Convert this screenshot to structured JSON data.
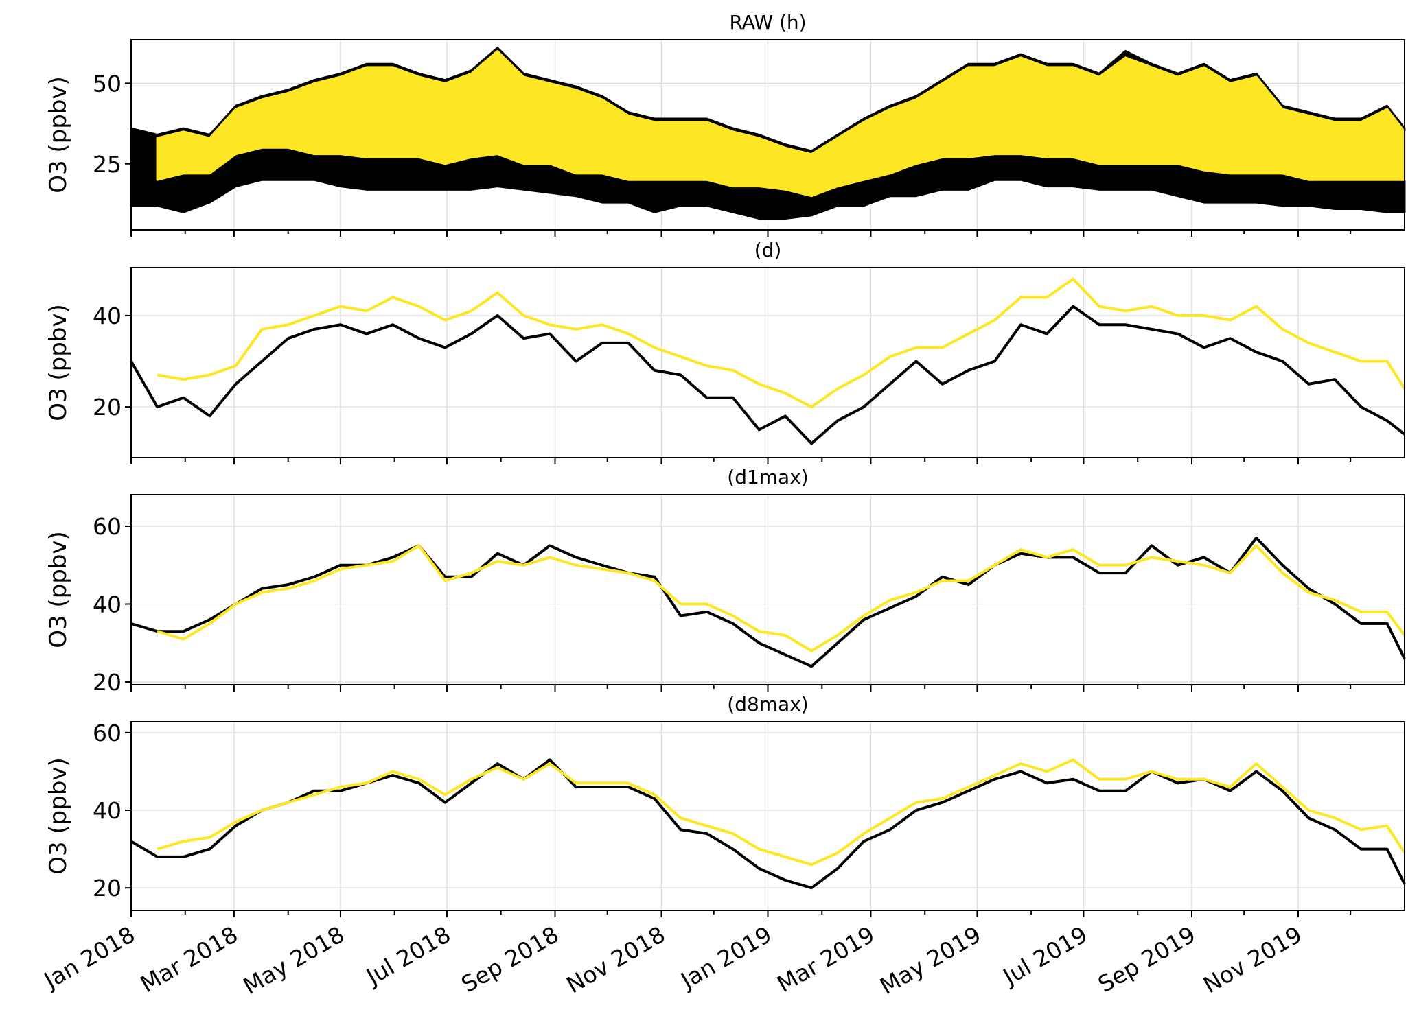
{
  "colors": {
    "observed": "#000000",
    "model": "#fde725",
    "grid": "#dddddd"
  },
  "x_tick_labels": [
    "Jan 2018",
    "Mar 2018",
    "May 2018",
    "Jul 2018",
    "Sep 2018",
    "Nov 2018",
    "Jan 2019",
    "Mar 2019",
    "May 2019",
    "Jul 2019",
    "Sep 2019",
    "Nov 2019"
  ],
  "chart_data": [
    {
      "type": "area",
      "title": "RAW (h)",
      "ylabel": "O3 (ppbv)",
      "yticks": [
        25,
        50
      ],
      "ylim": [
        4.5,
        63.5
      ],
      "xlim": [
        0,
        730
      ],
      "grid": true,
      "x": [
        0,
        15,
        30,
        45,
        60,
        75,
        90,
        105,
        120,
        135,
        150,
        165,
        180,
        195,
        210,
        225,
        240,
        255,
        270,
        285,
        300,
        315,
        330,
        345,
        360,
        375,
        390,
        405,
        420,
        435,
        450,
        465,
        480,
        495,
        510,
        525,
        540,
        555,
        570,
        585,
        600,
        615,
        630,
        645,
        660,
        675,
        690,
        705,
        720,
        730
      ],
      "series": [
        {
          "name": "black",
          "low": [
            12,
            12,
            10,
            13,
            18,
            20,
            20,
            20,
            18,
            17,
            17,
            17,
            17,
            17,
            18,
            17,
            16,
            15,
            13,
            13,
            10,
            12,
            12,
            10,
            8,
            8,
            9,
            12,
            12,
            15,
            15,
            17,
            17,
            20,
            20,
            18,
            18,
            17,
            17,
            17,
            15,
            13,
            13,
            13,
            12,
            12,
            11,
            11,
            10,
            10
          ],
          "high": [
            36,
            34,
            36,
            34,
            43,
            46,
            48,
            51,
            53,
            56,
            56,
            53,
            51,
            54,
            61,
            53,
            51,
            49,
            46,
            41,
            39,
            39,
            39,
            36,
            34,
            31,
            29,
            34,
            39,
            43,
            46,
            51,
            56,
            56,
            59,
            56,
            56,
            53,
            60,
            56,
            53,
            56,
            51,
            53,
            43,
            41,
            39,
            39,
            43,
            36
          ]
        },
        {
          "name": "yellow",
          "low": [
            null,
            20,
            22,
            22,
            28,
            30,
            30,
            28,
            28,
            27,
            27,
            27,
            25,
            27,
            28,
            25,
            25,
            22,
            22,
            20,
            20,
            20,
            20,
            18,
            18,
            17,
            15,
            18,
            20,
            22,
            25,
            27,
            27,
            28,
            28,
            27,
            27,
            25,
            25,
            25,
            25,
            23,
            22,
            22,
            22,
            20,
            20,
            20,
            20,
            20
          ],
          "high": [
            null,
            33,
            35,
            33,
            42,
            45,
            47,
            50,
            52,
            55,
            55,
            52,
            50,
            53,
            60,
            52,
            50,
            48,
            45,
            40,
            38,
            38,
            38,
            35,
            33,
            30,
            28,
            33,
            38,
            42,
            45,
            50,
            55,
            55,
            58,
            55,
            55,
            52,
            58,
            55,
            52,
            55,
            50,
            52,
            42,
            40,
            38,
            38,
            42,
            35
          ]
        }
      ]
    },
    {
      "type": "line",
      "title": "(d)",
      "ylabel": "O3 (ppbv)",
      "yticks": [
        20,
        40
      ],
      "ylim": [
        8.9,
        50.5
      ],
      "xlim": [
        0,
        730
      ],
      "grid": true,
      "x": [
        0,
        15,
        30,
        45,
        60,
        75,
        90,
        105,
        120,
        135,
        150,
        165,
        180,
        195,
        210,
        225,
        240,
        255,
        270,
        285,
        300,
        315,
        330,
        345,
        360,
        375,
        390,
        405,
        420,
        435,
        450,
        465,
        480,
        495,
        510,
        525,
        540,
        555,
        570,
        585,
        600,
        615,
        630,
        645,
        660,
        675,
        690,
        705,
        720,
        730
      ],
      "series": [
        {
          "name": "black",
          "values": [
            30,
            20,
            22,
            18,
            25,
            30,
            35,
            37,
            38,
            36,
            38,
            35,
            33,
            36,
            40,
            35,
            36,
            30,
            34,
            34,
            28,
            27,
            22,
            22,
            15,
            18,
            12,
            17,
            20,
            25,
            30,
            25,
            28,
            30,
            38,
            36,
            42,
            38,
            38,
            37,
            36,
            33,
            35,
            32,
            30,
            25,
            26,
            20,
            17,
            14
          ]
        },
        {
          "name": "yellow",
          "values": [
            null,
            27,
            26,
            27,
            29,
            37,
            38,
            40,
            42,
            41,
            44,
            42,
            39,
            41,
            45,
            40,
            38,
            37,
            38,
            36,
            33,
            31,
            29,
            28,
            25,
            23,
            20,
            24,
            27,
            31,
            33,
            33,
            36,
            39,
            44,
            44,
            48,
            42,
            41,
            42,
            40,
            40,
            39,
            42,
            37,
            34,
            32,
            30,
            30,
            24
          ]
        }
      ]
    },
    {
      "type": "line",
      "title": "(d1max)",
      "ylabel": "O3 (ppbv)",
      "yticks": [
        20,
        40,
        60
      ],
      "ylim": [
        19.3,
        68.1
      ],
      "xlim": [
        0,
        730
      ],
      "grid": true,
      "x": [
        0,
        15,
        30,
        45,
        60,
        75,
        90,
        105,
        120,
        135,
        150,
        165,
        180,
        195,
        210,
        225,
        240,
        255,
        270,
        285,
        300,
        315,
        330,
        345,
        360,
        375,
        390,
        405,
        420,
        435,
        450,
        465,
        480,
        495,
        510,
        525,
        540,
        555,
        570,
        585,
        600,
        615,
        630,
        645,
        660,
        675,
        690,
        705,
        720,
        730
      ],
      "series": [
        {
          "name": "black",
          "values": [
            35,
            33,
            33,
            36,
            40,
            44,
            45,
            47,
            50,
            50,
            52,
            55,
            47,
            47,
            53,
            50,
            55,
            52,
            50,
            48,
            47,
            37,
            38,
            35,
            30,
            27,
            24,
            30,
            36,
            39,
            42,
            47,
            45,
            50,
            53,
            52,
            52,
            48,
            48,
            55,
            50,
            52,
            48,
            57,
            50,
            44,
            40,
            35,
            35,
            26
          ]
        },
        {
          "name": "yellow",
          "values": [
            null,
            33,
            31,
            35,
            40,
            43,
            44,
            46,
            49,
            50,
            51,
            55,
            46,
            48,
            51,
            50,
            52,
            50,
            49,
            48,
            46,
            40,
            40,
            37,
            33,
            32,
            28,
            32,
            37,
            41,
            43,
            46,
            46,
            50,
            54,
            52,
            54,
            50,
            50,
            52,
            51,
            50,
            48,
            55,
            48,
            43,
            41,
            38,
            38,
            32
          ]
        }
      ]
    },
    {
      "type": "line",
      "title": "(d8max)",
      "ylabel": "O3 (ppbv)",
      "yticks": [
        20,
        40,
        60
      ],
      "ylim": [
        14.2,
        62.8
      ],
      "xlim": [
        0,
        730
      ],
      "grid": true,
      "x": [
        0,
        15,
        30,
        45,
        60,
        75,
        90,
        105,
        120,
        135,
        150,
        165,
        180,
        195,
        210,
        225,
        240,
        255,
        270,
        285,
        300,
        315,
        330,
        345,
        360,
        375,
        390,
        405,
        420,
        435,
        450,
        465,
        480,
        495,
        510,
        525,
        540,
        555,
        570,
        585,
        600,
        615,
        630,
        645,
        660,
        675,
        690,
        705,
        720,
        730
      ],
      "series": [
        {
          "name": "black",
          "values": [
            32,
            28,
            28,
            30,
            36,
            40,
            42,
            45,
            45,
            47,
            49,
            47,
            42,
            47,
            52,
            48,
            53,
            46,
            46,
            46,
            43,
            35,
            34,
            30,
            25,
            22,
            20,
            25,
            32,
            35,
            40,
            42,
            45,
            48,
            50,
            47,
            48,
            45,
            45,
            50,
            47,
            48,
            45,
            50,
            45,
            38,
            35,
            30,
            30,
            21
          ]
        },
        {
          "name": "yellow",
          "values": [
            null,
            30,
            32,
            33,
            37,
            40,
            42,
            44,
            46,
            47,
            50,
            48,
            44,
            48,
            51,
            48,
            52,
            47,
            47,
            47,
            44,
            38,
            36,
            34,
            30,
            28,
            26,
            29,
            34,
            38,
            42,
            43,
            46,
            49,
            52,
            50,
            53,
            48,
            48,
            50,
            48,
            48,
            46,
            52,
            46,
            40,
            38,
            35,
            36,
            29
          ]
        }
      ]
    }
  ]
}
